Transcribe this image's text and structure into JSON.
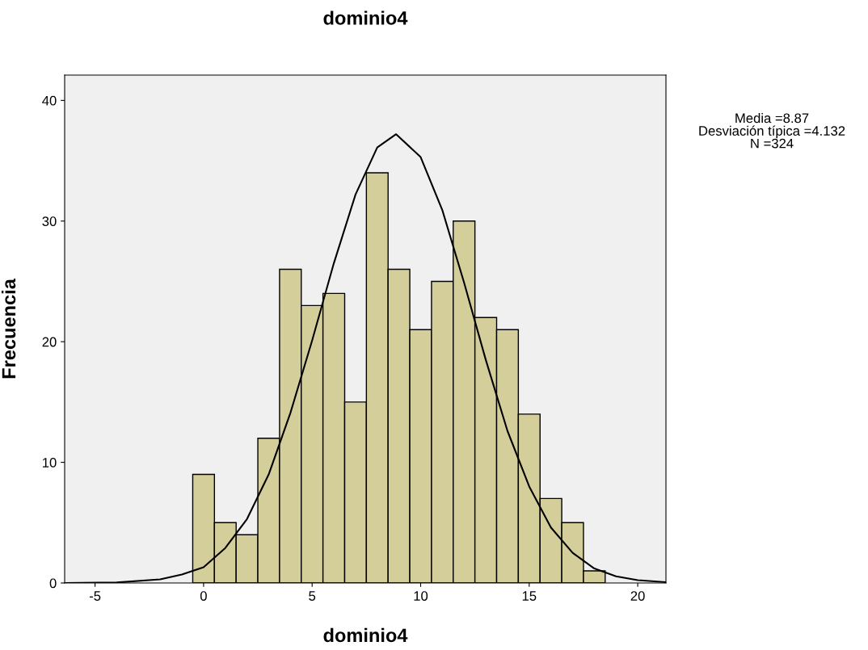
{
  "chart_data": {
    "type": "histogram",
    "title": "dominio4",
    "xlabel": "dominio4",
    "ylabel": "Frecuencia",
    "series": [
      {
        "type": "histogram",
        "color": "#d3ce9a",
        "bins": [
          -0.5,
          0.5,
          1.5,
          2.5,
          3.5,
          4.5,
          5.5,
          6.5,
          7.5,
          8.5,
          9.5,
          10.5,
          11.5,
          12.5,
          13.5,
          14.5,
          15.5,
          16.5,
          17.5,
          18.5
        ],
        "values": [
          9,
          5,
          4,
          12,
          26,
          23,
          24,
          15,
          34,
          26,
          21,
          25,
          30,
          22,
          21,
          14,
          7,
          5,
          1
        ]
      },
      {
        "type": "line",
        "color": "#000000",
        "x": [
          -6.4,
          -4,
          -2,
          -1,
          0,
          1,
          2,
          3,
          4,
          5,
          6,
          7,
          8,
          8.87,
          10,
          11,
          12,
          13,
          14,
          15,
          16,
          17,
          18,
          19,
          20,
          21.3
        ],
        "values": [
          0,
          0.04,
          0.3,
          0.7,
          1.3,
          2.9,
          5.3,
          9,
          14.1,
          20.1,
          26.5,
          32.2,
          36.1,
          37.2,
          35.3,
          30.9,
          24.9,
          18.5,
          12.6,
          8,
          4.6,
          2.5,
          1.2,
          0.55,
          0.23,
          0.07
        ]
      }
    ],
    "xlim": [
      -6.4,
      21.3
    ],
    "xticks": [
      -5,
      0,
      5,
      10,
      15,
      20
    ],
    "ylim": [
      0,
      42.1
    ],
    "yticks": [
      0,
      10,
      20,
      30,
      40
    ],
    "grid": false,
    "marker": "none",
    "line_style": "solid",
    "annotations": [
      "Media =8.87",
      "Desviación típica =4.132",
      "N =324"
    ]
  }
}
